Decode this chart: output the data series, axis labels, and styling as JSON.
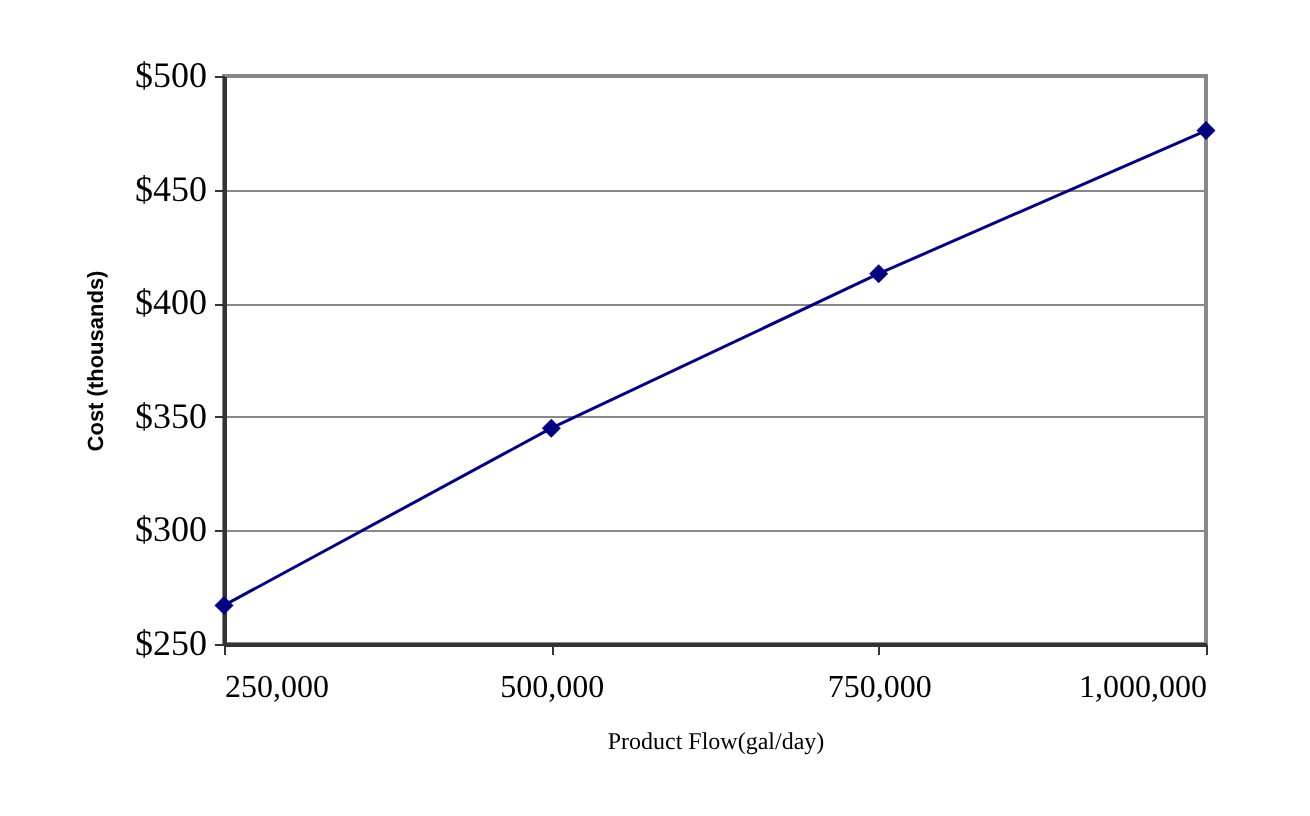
{
  "chart_data": {
    "type": "line",
    "xlabel": "Product Flow(gal/day)",
    "ylabel": "Cost (thousands)",
    "x": [
      250000,
      500000,
      750000,
      1000000
    ],
    "series": [
      {
        "color": "#000080",
        "values": [
          267,
          345,
          413,
          476
        ]
      }
    ],
    "xlim": [
      250000,
      1000000
    ],
    "xticks": [
      {
        "value": 250000,
        "label": "250,000"
      },
      {
        "value": 500000,
        "label": "500,000"
      },
      {
        "value": 750000,
        "label": "750,000"
      },
      {
        "value": 1000000,
        "label": "1,000,000"
      }
    ],
    "ylim": [
      250,
      500
    ],
    "yticks": [
      {
        "value": 250,
        "label": "$250"
      },
      {
        "value": 300,
        "label": "$300"
      },
      {
        "value": 350,
        "label": "$350"
      },
      {
        "value": 400,
        "label": "$400"
      },
      {
        "value": 450,
        "label": "$450"
      },
      {
        "value": 500,
        "label": "$500"
      }
    ],
    "grid": "y",
    "marker": "diamond",
    "line_style": "solid"
  }
}
